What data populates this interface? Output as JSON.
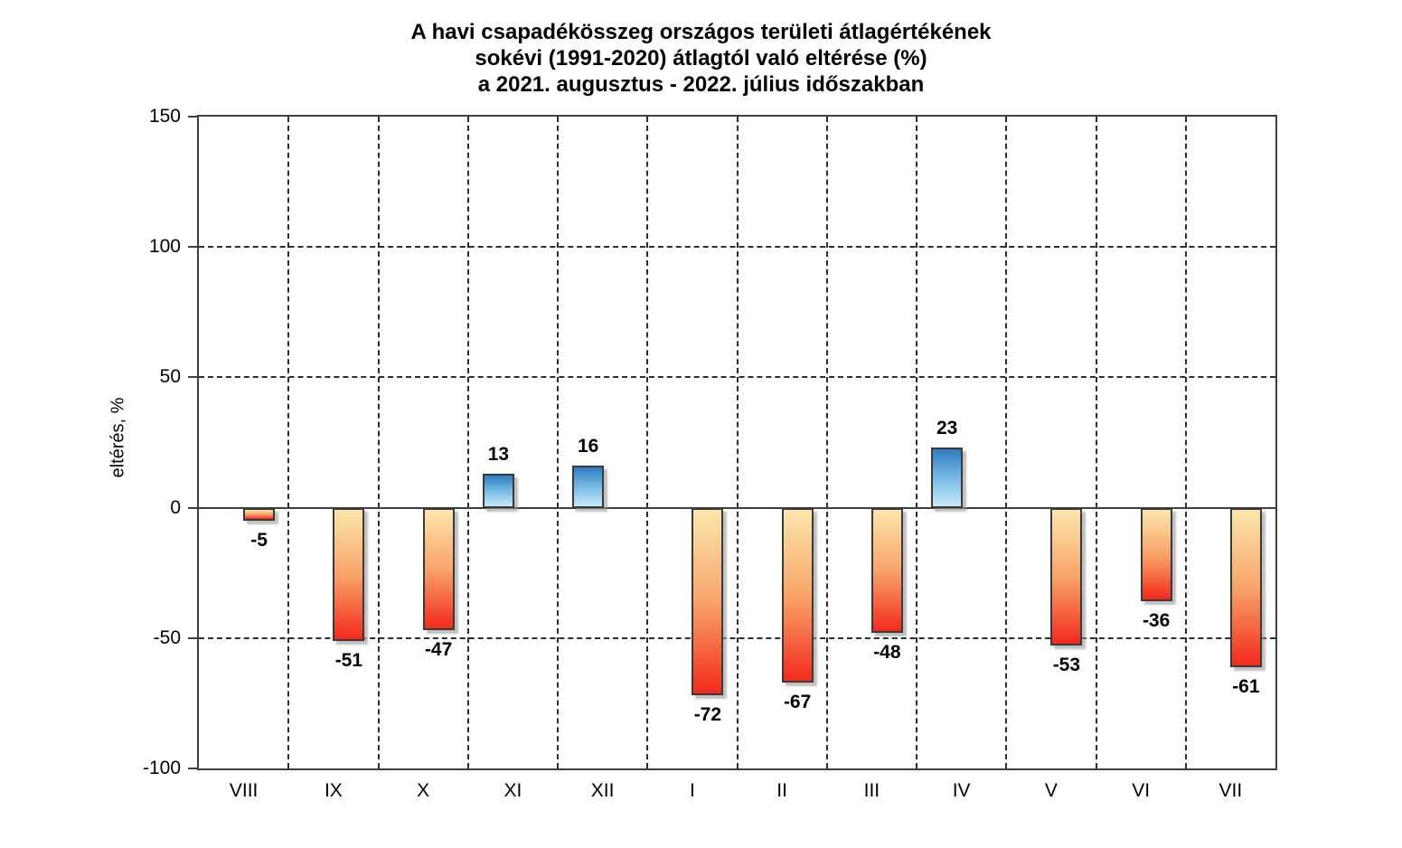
{
  "title": {
    "line1": "A havi csapadékösszeg országos területi átlagértékének",
    "line2": "sokévi (1991-2020) átlagtól való eltérése (%)",
    "line3": "a 2021. augusztus - 2022. július időszakban"
  },
  "y_axis": {
    "label": "eltérés, %",
    "ticks": [
      150,
      100,
      50,
      0,
      -50,
      -100
    ]
  },
  "chart_data": {
    "type": "bar",
    "title": "A havi csapadékösszeg országos területi átlagértékének sokévi (1991-2020) átlagtól való eltérése (%) a 2021. augusztus - 2022. július időszakban",
    "categories": [
      "VIII",
      "IX",
      "X",
      "XI",
      "XII",
      "I",
      "II",
      "III",
      "IV",
      "V",
      "VI",
      "VII"
    ],
    "values": [
      -5,
      -51,
      -47,
      13,
      16,
      -72,
      -67,
      -48,
      23,
      -53,
      -36,
      -61
    ],
    "xlabel": "",
    "ylabel": "eltérés, %",
    "ylim": [
      -100,
      150
    ],
    "ytick_step": 50,
    "grid": true,
    "legend_position": "none",
    "bar_label_position": "outside-end",
    "colors": {
      "positive_gradient_top": "#2E7CC0",
      "positive_gradient_mid": "#77BAE4",
      "positive_gradient_bottom": "#C6E9FA",
      "negative_gradient_top": "#FBE6AC",
      "negative_gradient_mid": "#F8A468",
      "negative_gradient_bottom": "#F32A1C",
      "bar_border": "#3A3A3A",
      "axis": "#3F3F3F",
      "gridline": "#2E2E2E",
      "background": "#FFFFFF",
      "text": "#000000"
    }
  }
}
